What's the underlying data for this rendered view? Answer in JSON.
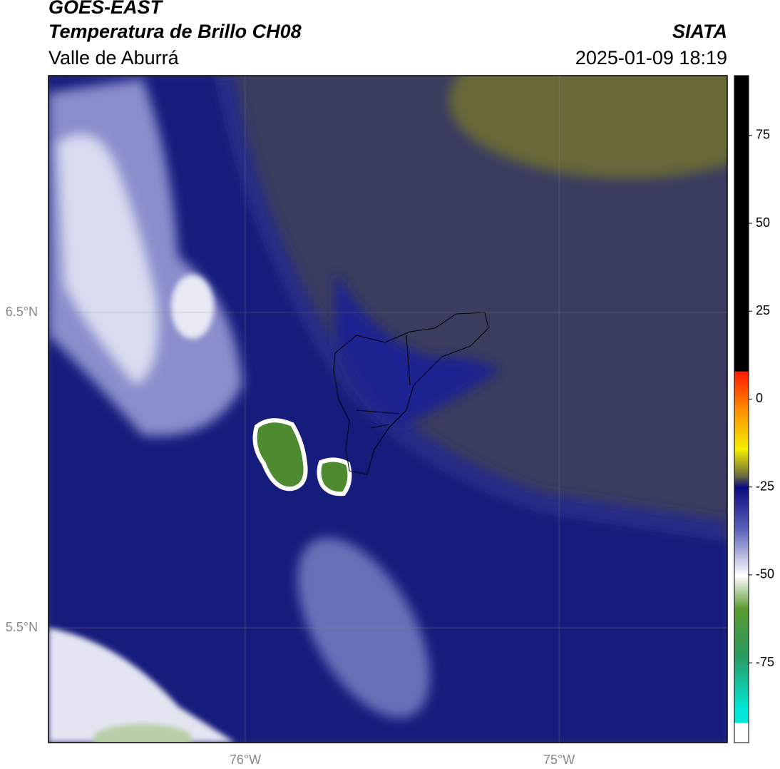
{
  "header": {
    "title": "GOES-EAST",
    "subtitle": "Temperatura de Brillo CH08",
    "region": "Valle de Aburrá",
    "source": "SIATA",
    "datetime": "2025-01-09 18:19"
  },
  "map": {
    "lon_range": [
      -76.627,
      -74.464
    ],
    "lat_range": [
      5.136,
      7.251
    ],
    "lon_ticks": [
      {
        "value": -76,
        "label": "76°W"
      },
      {
        "value": -75,
        "label": "75°W"
      }
    ],
    "lat_ticks": [
      {
        "value": 6.5,
        "label": "6.5°N"
      },
      {
        "value": 5.5,
        "label": "5.5°N"
      }
    ]
  },
  "colorbar": {
    "range": [
      -97.7,
      92
    ],
    "ticks": [
      75,
      50,
      25,
      0,
      -25,
      -50,
      -75
    ]
  }
}
